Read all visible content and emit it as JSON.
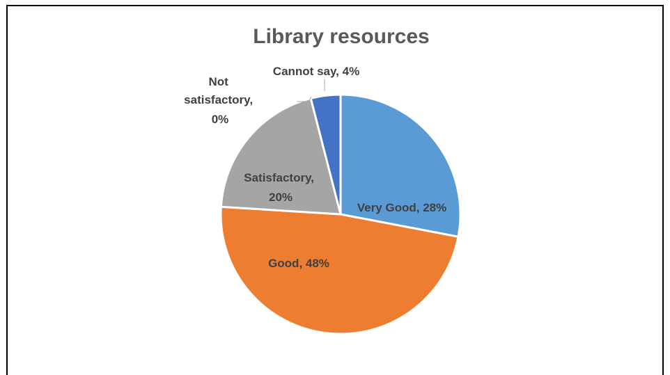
{
  "chart_data": {
    "type": "pie",
    "title": "Library resources",
    "slices": [
      {
        "label": "Very Good",
        "value": 28,
        "color": "#5B9BD5",
        "display": "Very Good, 28%"
      },
      {
        "label": "Good",
        "value": 48,
        "color": "#ED7D31",
        "display": "Good, 48%"
      },
      {
        "label": "Satisfactory",
        "value": 20,
        "color": "#A5A5A5",
        "display_lines": [
          "Satisfactory,",
          "20%"
        ]
      },
      {
        "label": "Not satisfactory",
        "value": 0,
        "color": "#FFC000",
        "display_lines": [
          "Not",
          "satisfactory,",
          "0%"
        ]
      },
      {
        "label": "Cannot say",
        "value": 4,
        "color": "#4472C4",
        "display": "Cannot say, 4%"
      }
    ]
  }
}
